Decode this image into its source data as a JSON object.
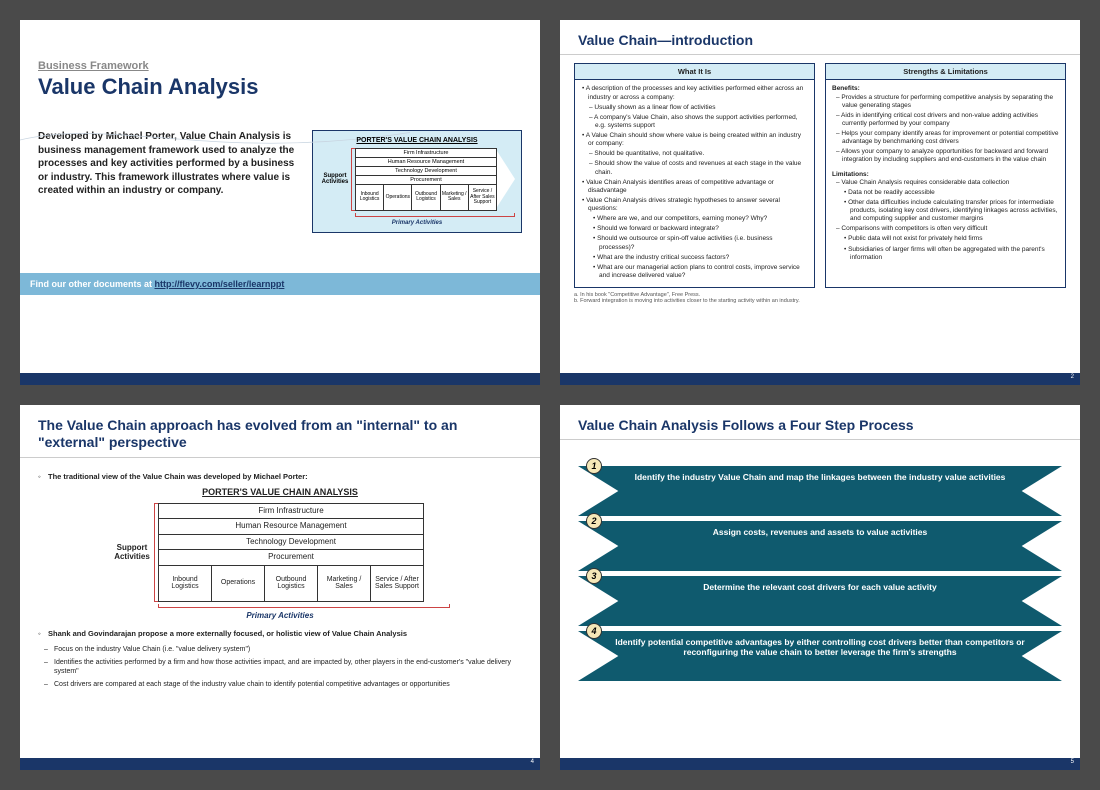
{
  "colors": {
    "brand_navy": "#1a3668",
    "brand_light_blue": "#d4ecf5",
    "banner_blue": "#7db8d8",
    "step_fill": "#0f5a6e",
    "step_num_bg": "#f5e8b8",
    "bracket_red": "#c44444",
    "page_bg": "#4a4a4a"
  },
  "slide1": {
    "subheading": "Business Framework",
    "heading": "Value Chain Analysis",
    "description": "Developed by Michael Porter, Value Chain Analysis is business management framework used to analyze the processes and key activities performed by a business or industry.  This framework illustrates where value is created within an industry or company.",
    "banner_prefix": "Find our other documents at ",
    "banner_link": "http://flevy.com/seller/learnppt"
  },
  "slide2": {
    "title": "Value Chain—introduction",
    "left_header": "What It Is",
    "left_items": [
      "A description of the processes and key activities performed either across an industry or across a company:",
      "–Usually shown as a linear flow of activities",
      "–A company's Value Chain, also shows the support activities performed, e.g. systems support",
      "A Value Chain should show where value is being created within an industry or company:",
      "–Should be quantitative, not qualitative.",
      "–Should show the value of costs and revenues at each stage in the value chain.",
      "Value Chain Analysis identifies areas of competitive advantage or disadvantage",
      "Value Chain Analysis drives strategic hypotheses to answer several questions:",
      "• Where are we, and our competitors, earning money? Why?",
      "• Should we forward or backward integrate?",
      "• Should we outsource or spin-off value activities (i.e. business processes)?",
      "• What are the industry critical success factors?",
      "• What are our managerial action plans to control costs, improve service and increase delivered value?"
    ],
    "right_header": "Strengths & Limitations",
    "right_benefits_label": "Benefits:",
    "right_benefits": [
      "Provides a structure for performing competitive analysis by separating the value generating stages",
      "Aids in identifying critical cost drivers and non-value adding activities currently performed by your company",
      "Helps your company identify areas for improvement or potential competitive advantage by benchmarking cost drivers",
      "Allows your company to analyze opportunities for backward and forward integration by including suppliers and end-customers in the value chain"
    ],
    "right_limits_label": "Limitations:",
    "right_limits": [
      "Value Chain Analysis requires considerable data collection",
      "• Data not be readily accessible",
      "• Other data difficulties include calculating transfer prices for intermediate products, isolating key cost drivers, identifying linkages across activities, and computing supplier and customer margins",
      "Comparisons with competitors is often very difficult",
      "• Public data will not exist for privately held firms",
      "• Subsidiaries of larger firms will often be aggregated with the parent's information"
    ],
    "footnote_a": "a.  In his book \"Competitive Advantage\", Free Press.",
    "footnote_b": "b.  Forward integration is moving into activities closer to the starting activity within an industry.",
    "page": "2"
  },
  "slide3": {
    "title": "The Value Chain approach has evolved from an \"internal\" to an \"external\" perspective",
    "lead1": "The traditional view of the Value Chain was developed by Michael Porter:",
    "lead2": "Shank and Govindarajan propose a more externally focused, or holistic view of Value Chain Analysis",
    "sub1": "Focus on the industry Value Chain (i.e. \"value delivery system\")",
    "sub2": "Identifies the activities performed by a firm and how those activities impact, and are impacted by, other players in the end-customer's \"value delivery system\"",
    "sub3": "Cost drivers are compared at each stage of the industry value chain to identify potential competitive advantages or opportunities",
    "page": "4"
  },
  "slide4": {
    "title": "Value Chain Analysis Follows a Four Step Process",
    "steps": [
      {
        "num": "1",
        "text": "Identify the industry Value Chain and map the linkages between the industry value activities"
      },
      {
        "num": "2",
        "text": "Assign costs, revenues and assets to value activities"
      },
      {
        "num": "3",
        "text": "Determine the relevant cost drivers for each value activity"
      },
      {
        "num": "4",
        "text": "Identify potential competitive advantages by either controlling cost drivers better than competitors or reconfiguring the value chain to better leverage the firm's strengths"
      }
    ],
    "page": "5"
  },
  "value_chain": {
    "diagram_title": "PORTER'S VALUE CHAIN ANALYSIS",
    "support_label": "Support Activities",
    "support_rows": [
      "Firm Infrastructure",
      "Human Resource Management",
      "Technology Development",
      "Procurement"
    ],
    "primary_cells": [
      "Inbound Logistics",
      "Operations",
      "Outbound Logistics",
      "Marketing / Sales",
      "Service / After Sales Support"
    ],
    "primary_label": "Primary Activities"
  }
}
